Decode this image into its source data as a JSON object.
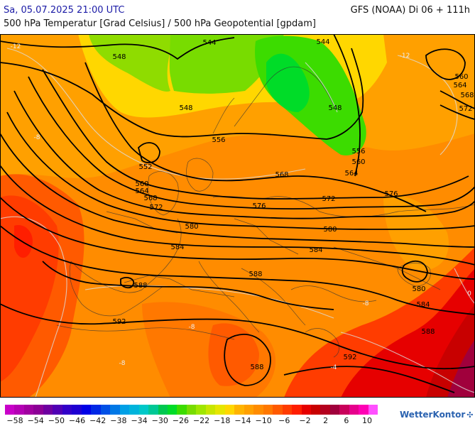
{
  "header": {
    "date": "Sa, 05.07.2025 21:00 UTC",
    "model": "GFS (NOAA) Di 06 + 111h",
    "parameter": "500 hPa Temperatur [Grad Celsius] / 500 hPa Geopotential [gpdam]"
  },
  "isohypses": [
    "544",
    "548",
    "552",
    "556",
    "560",
    "564",
    "568",
    "572",
    "576",
    "580",
    "584",
    "588",
    "592"
  ],
  "temp_labels": [
    "-12",
    "-8",
    "-4",
    "0"
  ],
  "legend": {
    "ticks": [
      "−58",
      "−54",
      "−50",
      "−46",
      "−42",
      "−38",
      "−34",
      "−30",
      "−26",
      "−22",
      "−18",
      "−14",
      "−10",
      "−6",
      "−2",
      "2",
      "6",
      "10"
    ],
    "colors": [
      "#c800c8",
      "#b400b4",
      "#a000a0",
      "#8c0096",
      "#6e00a0",
      "#5000b4",
      "#3200c8",
      "#1e00d2",
      "#0000e6",
      "#0028e6",
      "#0050e6",
      "#0078e6",
      "#00a0e6",
      "#00b4dc",
      "#00c8c8",
      "#00c896",
      "#00c850",
      "#00dc28",
      "#3cdc00",
      "#78dc00",
      "#a0e600",
      "#c8e600",
      "#e6e600",
      "#ffd700",
      "#ffb400",
      "#ffa000",
      "#ff8c00",
      "#ff7800",
      "#ff5a00",
      "#ff3c00",
      "#ff1e00",
      "#e60000",
      "#c80000",
      "#b4001e",
      "#a0003c",
      "#c8005a",
      "#e6008c",
      "#ff00b4",
      "#ff50ff"
    ]
  },
  "logo": {
    "text": "WetterKontor",
    "icon": "wind-turbine-icon"
  }
}
